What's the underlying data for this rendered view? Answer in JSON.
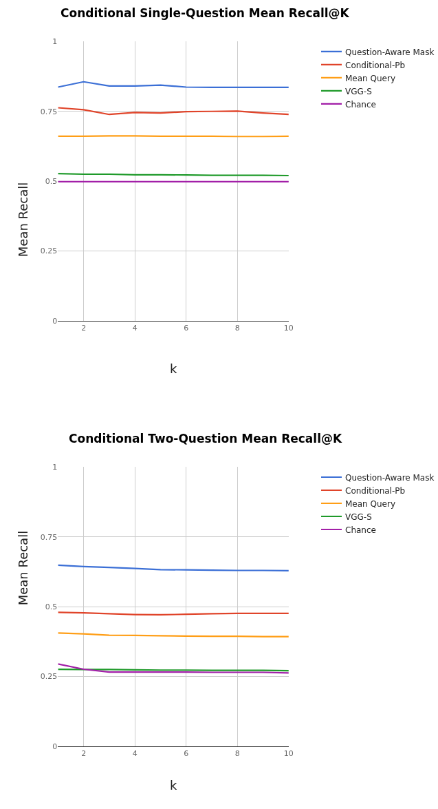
{
  "chart_data": [
    {
      "type": "line",
      "title": "Conditional Single-Question Mean Recall@K",
      "xlabel": "k",
      "ylabel": "Mean Recall",
      "x": [
        1,
        2,
        3,
        4,
        5,
        6,
        7,
        8,
        9,
        10
      ],
      "xlim": [
        1,
        10
      ],
      "xticks": [
        2,
        4,
        6,
        8,
        10
      ],
      "ylim": [
        0,
        1
      ],
      "yticks": [
        0,
        0.25,
        0.5,
        0.75,
        1
      ],
      "grid": true,
      "legend": "top right",
      "marker": "none",
      "line_style": "solid",
      "series": [
        {
          "name": "Question-Aware Mask",
          "color": "#3b6fd6",
          "values": [
            0.837,
            0.856,
            0.841,
            0.841,
            0.844,
            0.837,
            0.836,
            0.836,
            0.836,
            0.836
          ]
        },
        {
          "name": "Conditional-Pb",
          "color": "#e0442a",
          "values": [
            0.763,
            0.756,
            0.739,
            0.746,
            0.744,
            0.749,
            0.75,
            0.751,
            0.744,
            0.739
          ]
        },
        {
          "name": "Mean Query",
          "color": "#ff9e16",
          "values": [
            0.661,
            0.661,
            0.662,
            0.662,
            0.661,
            0.661,
            0.661,
            0.66,
            0.66,
            0.661
          ]
        },
        {
          "name": "VGG-S",
          "color": "#1f9a2a",
          "values": [
            0.527,
            0.525,
            0.525,
            0.523,
            0.523,
            0.522,
            0.521,
            0.521,
            0.521,
            0.52
          ]
        },
        {
          "name": "Chance",
          "color": "#a21fa8",
          "values": [
            0.498,
            0.498,
            0.498,
            0.498,
            0.498,
            0.498,
            0.498,
            0.498,
            0.498,
            0.498
          ]
        }
      ]
    },
    {
      "type": "line",
      "title": "Conditional Two-Question Mean Recall@K",
      "xlabel": "k",
      "ylabel": "Mean Recall",
      "x": [
        1,
        2,
        3,
        4,
        5,
        6,
        7,
        8,
        9,
        10
      ],
      "xlim": [
        1,
        10
      ],
      "xticks": [
        2,
        4,
        6,
        8,
        10
      ],
      "ylim": [
        0,
        1
      ],
      "yticks": [
        0,
        0.25,
        0.5,
        0.75,
        1
      ],
      "grid": true,
      "legend": "top right",
      "marker": "none",
      "line_style": "solid",
      "series": [
        {
          "name": "Question-Aware Mask",
          "color": "#3b6fd6",
          "values": [
            0.649,
            0.644,
            0.641,
            0.637,
            0.633,
            0.632,
            0.631,
            0.63,
            0.63,
            0.629
          ]
        },
        {
          "name": "Conditional-Pb",
          "color": "#e0442a",
          "values": [
            0.48,
            0.478,
            0.475,
            0.472,
            0.471,
            0.473,
            0.475,
            0.476,
            0.476,
            0.476
          ]
        },
        {
          "name": "Mean Query",
          "color": "#ff9e16",
          "values": [
            0.406,
            0.403,
            0.398,
            0.397,
            0.396,
            0.395,
            0.394,
            0.394,
            0.393,
            0.393
          ]
        },
        {
          "name": "VGG-S",
          "color": "#1f9a2a",
          "values": [
            0.276,
            0.275,
            0.275,
            0.274,
            0.273,
            0.273,
            0.272,
            0.272,
            0.272,
            0.271
          ]
        },
        {
          "name": "Chance",
          "color": "#a21fa8",
          "values": [
            0.295,
            0.276,
            0.266,
            0.266,
            0.266,
            0.266,
            0.265,
            0.265,
            0.265,
            0.263
          ]
        }
      ]
    }
  ]
}
